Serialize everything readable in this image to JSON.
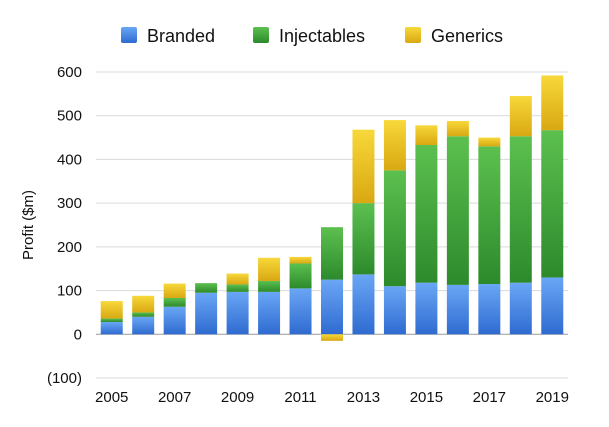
{
  "chart_data": {
    "type": "bar",
    "stacked": true,
    "title": "",
    "xlabel": "",
    "ylabel": "Profit ($m)",
    "ylim": [
      -100,
      600
    ],
    "y_ticks": [
      {
        "value": -100,
        "label": "(100)"
      },
      {
        "value": 0,
        "label": "0"
      },
      {
        "value": 100,
        "label": "100"
      },
      {
        "value": 200,
        "label": "200"
      },
      {
        "value": 300,
        "label": "300"
      },
      {
        "value": 400,
        "label": "400"
      },
      {
        "value": 500,
        "label": "500"
      },
      {
        "value": 600,
        "label": "600"
      }
    ],
    "x_tick_labels": [
      "2005",
      "2007",
      "2009",
      "2011",
      "2013",
      "2015",
      "2017",
      "2019"
    ],
    "grid": true,
    "legend_position": "top",
    "categories": [
      "2005",
      "2006",
      "2007",
      "2008",
      "2009",
      "2010",
      "2011",
      "2012",
      "2013",
      "2014",
      "2015",
      "2016",
      "2017",
      "2018",
      "2019"
    ],
    "series": [
      {
        "name": "Branded",
        "color": "#4a86e0",
        "values": [
          28,
          40,
          63,
          95,
          97,
          97,
          105,
          125,
          137,
          110,
          118,
          113,
          115,
          118,
          130
        ]
      },
      {
        "name": "Injectables",
        "color": "#3fa33c",
        "values": [
          8,
          10,
          20,
          22,
          17,
          25,
          57,
          120,
          163,
          265,
          315,
          340,
          315,
          335,
          337
        ]
      },
      {
        "name": "Generics",
        "color": "#f0c419",
        "values": [
          40,
          38,
          33,
          0,
          25,
          53,
          15,
          -15,
          168,
          115,
          45,
          35,
          20,
          92,
          125
        ]
      }
    ]
  }
}
